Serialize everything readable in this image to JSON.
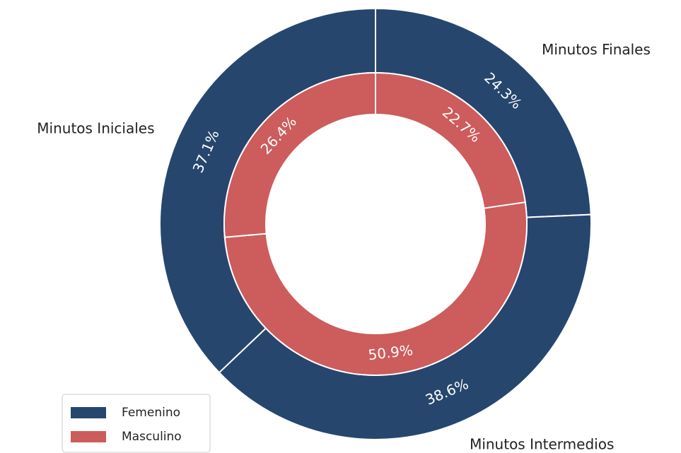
{
  "chart_data": {
    "type": "donut",
    "categories": [
      "Minutos Finales",
      "Minutos Intermedios",
      "Minutos Iniciales"
    ],
    "series": [
      {
        "name": "Femenino",
        "color": "#26466d",
        "values": [
          24.3,
          38.6,
          37.1
        ],
        "value_labels": [
          "24.3%",
          "38.6%",
          "37.1%"
        ]
      },
      {
        "name": "Masculino",
        "color": "#cd5c5c",
        "values": [
          22.7,
          50.9,
          26.4
        ],
        "value_labels": [
          "22.7%",
          "50.9%",
          "26.4%"
        ]
      }
    ],
    "legend": "lower left"
  }
}
